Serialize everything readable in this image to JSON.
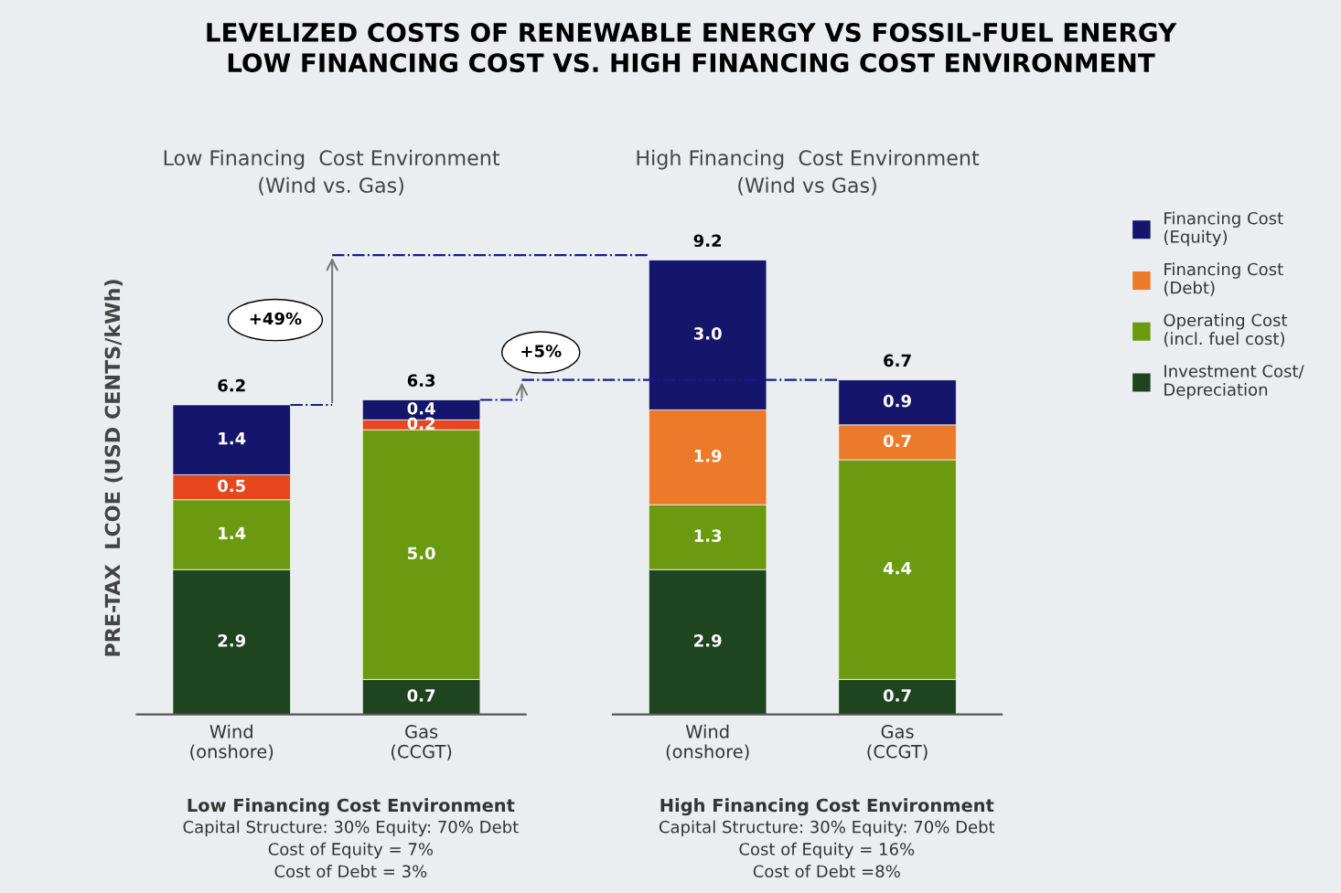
{
  "chart_data": [
    {
      "type": "bar",
      "stacked": true,
      "title": "LEVELIZED COSTS OF RENEWABLE ENERGY VS FOSSIL-FUEL ENERGY\nLOW FINANCING COST VS. HIGH FINANCING COST ENVIRONMENT",
      "subtitle": "Low Financing  Cost Environment\n(Wind vs. Gas)",
      "ylabel": "PRE-TAX  LCOE (USD CENTS/kWh)",
      "categories": [
        "Wind\n(onshore)",
        "Gas\n(CCGT)"
      ],
      "tick_labels": "x",
      "totals": [
        "6.2",
        "6.3"
      ],
      "legend": false,
      "series": [
        {
          "color": "#1f4420",
          "values": [
            2.9,
            0.7
          ],
          "value_labels": [
            "2.9",
            "0.7"
          ]
        },
        {
          "color": "#6b9a10",
          "values": [
            1.4,
            5.0
          ],
          "value_labels": [
            "1.4",
            "5.0"
          ]
        },
        {
          "color": "#e8461e",
          "values": [
            0.5,
            0.2
          ],
          "value_labels": [
            "0.5",
            "0.2"
          ]
        },
        {
          "color": "#15156b",
          "values": [
            1.4,
            0.4
          ],
          "value_labels": [
            "1.4",
            "0.4"
          ]
        }
      ],
      "ref_lines": [
        {
          "axis": "y",
          "value": 6.2,
          "color": "#1a1a8a",
          "line_style": "dashdot"
        },
        {
          "axis": "y",
          "value": 6.3,
          "color": "#1a1a8a",
          "line_style": "dashdot"
        }
      ],
      "annotations": [
        "+49%",
        "+5%",
        "Low Financing Cost Environment",
        "Capital Structure: 30% Equity: 70% Debt",
        "Cost of Equity = 7%",
        "Cost of Debt = 3%"
      ]
    },
    {
      "type": "bar",
      "stacked": true,
      "subtitle": "High Financing  Cost Environment\n(Wind vs Gas)",
      "categories": [
        "Wind\n(onshore)",
        "Gas\n(CCGT)"
      ],
      "tick_labels": "x",
      "totals": [
        "9.2",
        "6.7"
      ],
      "legend": "right",
      "series": [
        {
          "name": "Investment Cost/\nDepreciation",
          "color": "#1f4420",
          "values": [
            2.9,
            0.7
          ],
          "value_labels": [
            "2.9",
            "0.7"
          ]
        },
        {
          "name": "Operating Cost\n(incl. fuel cost)",
          "color": "#6b9a10",
          "values": [
            1.3,
            4.4
          ],
          "value_labels": [
            "1.3",
            "4.4"
          ]
        },
        {
          "name": "Financing Cost\n(Debt)",
          "color": "#ec7a2b",
          "values": [
            1.9,
            0.7
          ],
          "value_labels": [
            "1.9",
            "0.7"
          ]
        },
        {
          "name": "Financing Cost\n(Equity)",
          "color": "#15156b",
          "values": [
            3.0,
            0.9
          ],
          "value_labels": [
            "3.0",
            "0.9"
          ]
        }
      ],
      "ref_lines": [
        {
          "axis": "y",
          "value": 9.2,
          "color": "#1a1a8a",
          "line_style": "dashdot"
        },
        {
          "axis": "y",
          "value": 6.7,
          "color": "#1a1a8a",
          "line_style": "dashdot"
        }
      ],
      "annotations": [
        "High Financing Cost Environment",
        "Capital Structure: 30% Equity: 70% Debt",
        "Cost of Equity = 16%",
        "Cost of Debt =8%"
      ]
    }
  ]
}
